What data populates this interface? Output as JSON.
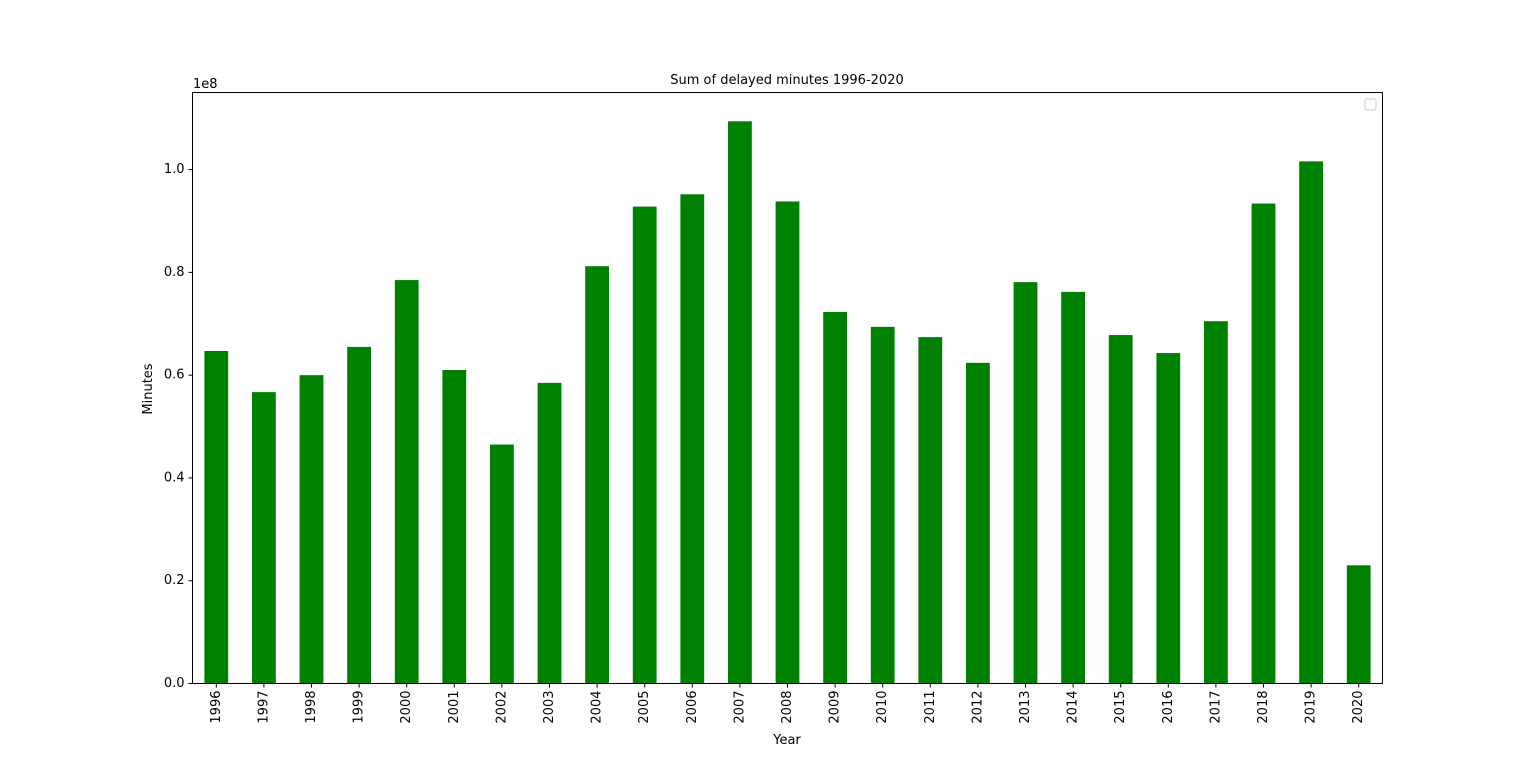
{
  "chart_data": {
    "type": "bar",
    "title": "Sum of delayed minutes 1996-2020",
    "xlabel": "Year",
    "ylabel": "Minutes",
    "offset_text": "1e8",
    "categories": [
      "1996",
      "1997",
      "1998",
      "1999",
      "2000",
      "2001",
      "2002",
      "2003",
      "2004",
      "2005",
      "2006",
      "2007",
      "2008",
      "2009",
      "2010",
      "2011",
      "2012",
      "2013",
      "2014",
      "2015",
      "2016",
      "2017",
      "2018",
      "2019",
      "2020"
    ],
    "values": [
      64700000,
      56700000,
      60000000,
      65500000,
      78500000,
      61000000,
      46500000,
      58500000,
      81200000,
      92800000,
      95200000,
      109400000,
      93800000,
      72300000,
      69400000,
      67400000,
      62400000,
      78100000,
      76200000,
      67800000,
      64300000,
      70500000,
      93400000,
      101600000,
      23000000
    ],
    "yticks": [
      0,
      20000000,
      40000000,
      60000000,
      80000000,
      100000000
    ],
    "ytick_labels": [
      "0.0",
      "0.2",
      "0.4",
      "0.6",
      "0.8",
      "1.0"
    ],
    "ylim": [
      0,
      115000000
    ],
    "bar_color": "#008000",
    "grid": false,
    "legend": {
      "placement": "top-right",
      "entries": []
    }
  }
}
